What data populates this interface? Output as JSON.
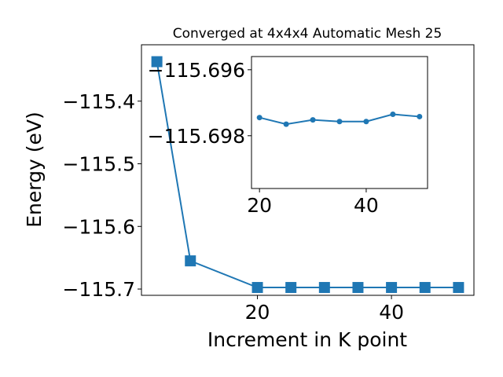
{
  "chart_data": [
    {
      "type": "line",
      "title": "Converged at 4x4x4 Automatic Mesh 25",
      "xlabel": "Increment in K point",
      "ylabel": "Energy (eV)",
      "xlim": [
        2.7,
        52.3
      ],
      "ylim": [
        -115.71,
        -115.31
      ],
      "xticks": [
        20,
        40
      ],
      "yticks": [
        -115.4,
        -115.5,
        -115.6,
        -115.7
      ],
      "ytick_labels": [
        "−115.4",
        "−115.5",
        "−115.6",
        "−115.7"
      ],
      "grid": false,
      "marker": "square",
      "color": "#1f77b4",
      "x": [
        5,
        10,
        20,
        25,
        30,
        35,
        40,
        45,
        50
      ],
      "y": [
        -115.337,
        -115.655,
        -115.6975,
        -115.6975,
        -115.6975,
        -115.6975,
        -115.6975,
        -115.6975,
        -115.6975
      ]
    },
    {
      "type": "line",
      "title": "",
      "xlim": [
        18.5,
        51.5
      ],
      "ylim": [
        -115.6996,
        -115.6956
      ],
      "xticks": [
        20,
        40
      ],
      "yticks": [
        -115.698,
        -115.696
      ],
      "ytick_labels": [
        "−115.698",
        "−115.696"
      ],
      "grid": false,
      "marker": "circle",
      "color": "#1f77b4",
      "x": [
        20,
        25,
        30,
        35,
        40,
        45,
        50
      ],
      "y": [
        -115.69745,
        -115.69765,
        -115.69752,
        -115.69757,
        -115.69757,
        -115.69735,
        -115.69742
      ]
    }
  ]
}
